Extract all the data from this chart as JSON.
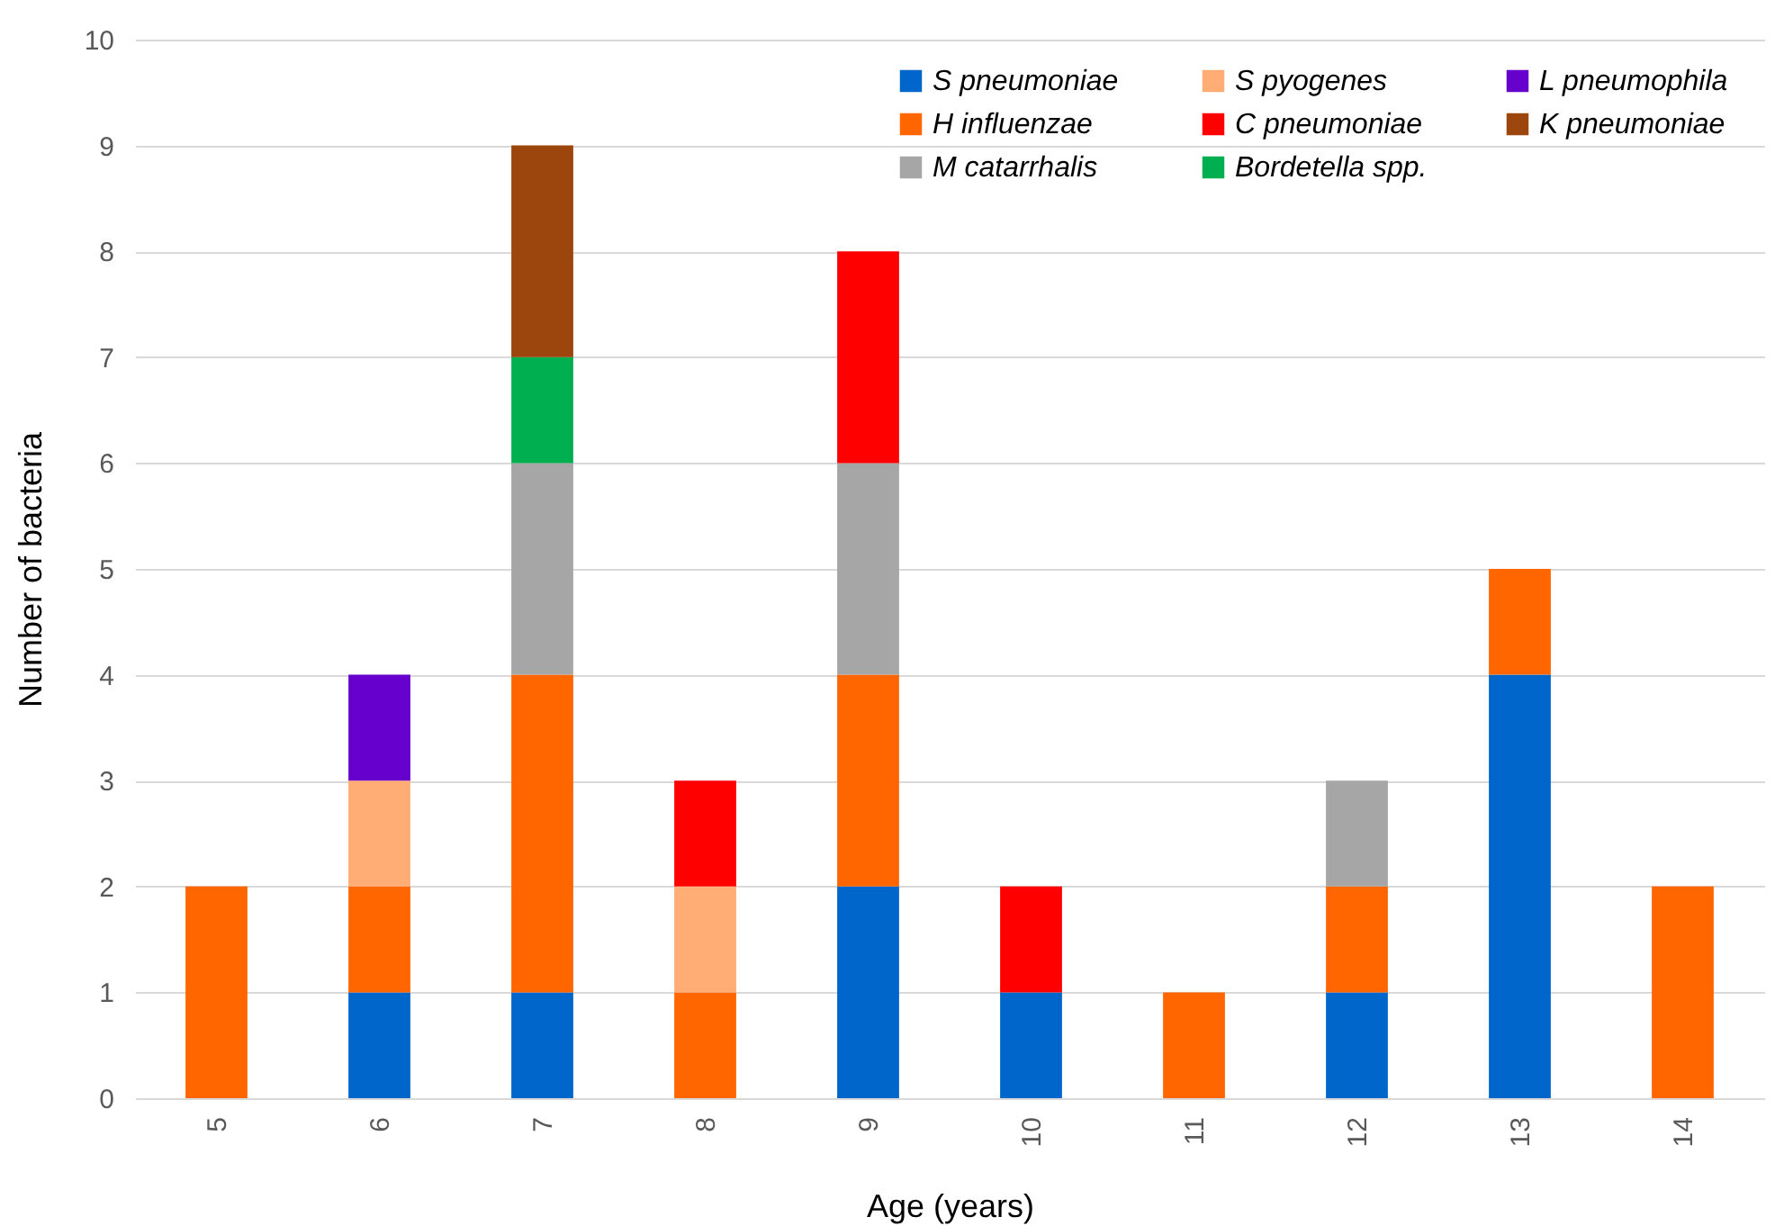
{
  "chart_data": {
    "type": "bar",
    "stacked": true,
    "xlabel": "Age (years)",
    "ylabel": "Number of bacteria",
    "categories": [
      "5",
      "6",
      "7",
      "8",
      "9",
      "10",
      "11",
      "12",
      "13",
      "14"
    ],
    "ylim": [
      0,
      10
    ],
    "yticks": [
      0,
      1,
      2,
      3,
      4,
      5,
      6,
      7,
      8,
      9,
      10
    ],
    "grid": "y",
    "legend": "top right",
    "series": [
      {
        "name": "S  pneumoniae",
        "color": "#0066cc",
        "values": [
          null,
          1,
          1,
          null,
          2,
          1,
          null,
          1,
          4,
          null
        ]
      },
      {
        "name": "H  influenzae",
        "color": "#ff6600",
        "values": [
          2,
          1,
          3,
          1,
          2,
          null,
          1,
          1,
          1,
          2
        ]
      },
      {
        "name": "M  catarrhalis",
        "color": "#a6a6a6",
        "values": [
          null,
          null,
          2,
          null,
          2,
          null,
          null,
          1,
          null,
          null
        ]
      },
      {
        "name": "S  pyogenes",
        "color": "#ffad75",
        "values": [
          null,
          1,
          null,
          1,
          null,
          null,
          null,
          null,
          null,
          null
        ]
      },
      {
        "name": "C  pneumoniae",
        "color": "#ff0000",
        "values": [
          null,
          null,
          null,
          1,
          2,
          1,
          null,
          null,
          null,
          null
        ]
      },
      {
        "name": "Bordetella spp.",
        "color": "#00b050",
        "values": [
          null,
          null,
          1,
          null,
          null,
          null,
          null,
          null,
          null,
          null
        ]
      },
      {
        "name": "L  pneumophila",
        "color": "#6600cc",
        "values": [
          null,
          1,
          null,
          null,
          null,
          null,
          null,
          null,
          null,
          null
        ]
      },
      {
        "name": "K  pneumoniae",
        "color": "#9c450c",
        "values": [
          null,
          null,
          2,
          null,
          null,
          null,
          null,
          null,
          null,
          null
        ]
      }
    ]
  }
}
